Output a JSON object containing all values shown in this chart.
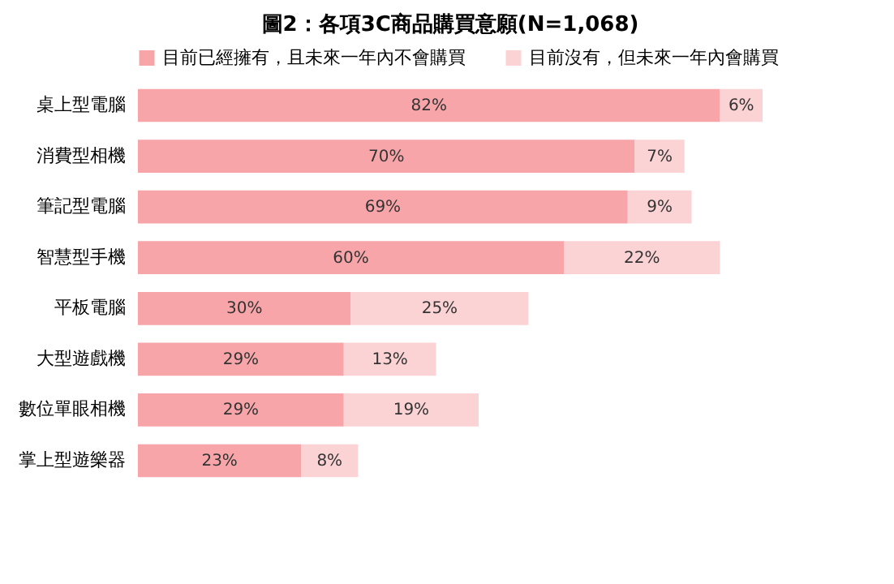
{
  "chart_data": {
    "type": "bar",
    "orientation": "horizontal",
    "stacked": true,
    "title": "圖2：各項3C商品購買意願(N=1,068)",
    "legend": "top right",
    "categories": [
      "桌上型電腦",
      "消費型相機",
      "筆記型電腦",
      "智慧型手機",
      "平板電腦",
      "大型遊戲機",
      "數位單眼相機",
      "掌上型遊樂器"
    ],
    "series": [
      {
        "name": "目前已經擁有，且未來一年內不會購買",
        "color": "#f7a5a9",
        "values": [
          82,
          70,
          69,
          60,
          30,
          29,
          29,
          23
        ],
        "value_labels": [
          "82%",
          "70%",
          "69%",
          "60%",
          "30%",
          "29%",
          "29%",
          "23%"
        ]
      },
      {
        "name": "目前沒有，但未來一年內會購買",
        "color": "#fbd3d5",
        "values": [
          6,
          7,
          9,
          22,
          25,
          13,
          19,
          8
        ],
        "value_labels": [
          "6%",
          "7%",
          "9%",
          "22%",
          "25%",
          "13%",
          "19%",
          "8%"
        ]
      }
    ]
  }
}
